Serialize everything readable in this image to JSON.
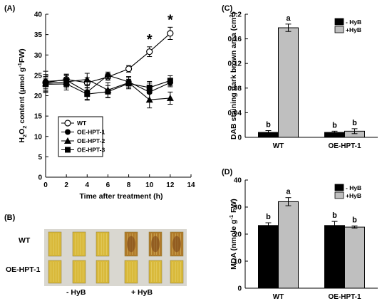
{
  "panels": {
    "a": "(A)",
    "b": "(B)",
    "c": "(C)",
    "d": "(D)"
  },
  "photo": {
    "row_labels": [
      "WT",
      "OE-HPT-1"
    ],
    "group_labels": [
      "- HyB",
      "+ HyB"
    ],
    "colors": {
      "background": "#d9d7d0",
      "leaf_control": "#d9b93a",
      "leaf_treated": "#b07a2a",
      "stain": "#7a4418"
    }
  },
  "chart_data": [
    {
      "id": "h2o2",
      "type": "line",
      "xlabel": "Time after treatment (h)",
      "ylabel_parts": [
        "H",
        "2",
        "O",
        "2",
        " content (μmol g",
        "-1",
        "FW)"
      ],
      "xlim": [
        0,
        14
      ],
      "ylim": [
        0,
        40
      ],
      "xticks": [
        "0",
        "2",
        "4",
        "6",
        "8",
        "10",
        "12",
        "14"
      ],
      "yticks": [
        "0",
        "5",
        "10",
        "15",
        "20",
        "25",
        "30",
        "35",
        "40"
      ],
      "x": [
        0,
        2,
        4,
        6,
        8,
        10,
        12
      ],
      "series": [
        {
          "name": "WT",
          "marker": "circle-open",
          "values": [
            23.2,
            24.0,
            23.2,
            24.6,
            26.6,
            30.8,
            35.3
          ],
          "errors": [
            1.5,
            1.2,
            1.2,
            0.8,
            0.8,
            1.2,
            1.5
          ]
        },
        {
          "name": "OE-HPT-1",
          "marker": "circle-filled",
          "values": [
            23.5,
            23.8,
            20.9,
            25.0,
            23.4,
            20.9,
            23.2
          ],
          "errors": [
            2.5,
            1.5,
            1.8,
            0.8,
            1.0,
            2.2,
            1.0
          ]
        },
        {
          "name": "OE-HPT-2",
          "marker": "triangle-filled",
          "values": [
            23.0,
            23.4,
            24.0,
            21.4,
            23.2,
            19.0,
            19.4
          ],
          "errors": [
            2.2,
            1.5,
            1.5,
            1.8,
            1.5,
            2.0,
            1.5
          ]
        },
        {
          "name": "OE-HPT-3",
          "marker": "square-filled",
          "values": [
            22.8,
            22.9,
            20.4,
            21.0,
            23.0,
            22.0,
            23.7
          ],
          "errors": [
            1.5,
            1.5,
            1.5,
            1.5,
            1.0,
            1.5,
            1.2
          ]
        }
      ],
      "annotations": [
        {
          "x": 10,
          "text": "*"
        },
        {
          "x": 12,
          "text": "*"
        }
      ]
    },
    {
      "id": "dab",
      "type": "bar",
      "ylabel_parts": [
        "DAB staining dark brown area (cm",
        "2",
        ")"
      ],
      "ylim": [
        0,
        0.2
      ],
      "yticks": [
        "0",
        "0.04",
        "0.08",
        "0.12",
        "0.16",
        "0.2"
      ],
      "categories": [
        "WT",
        "OE-HPT-1"
      ],
      "legend": [
        "- HyB",
        "+HyB"
      ],
      "series": [
        {
          "name": "- HyB",
          "color": "#000000",
          "values": [
            0.008,
            0.008
          ],
          "errors": [
            0.003,
            0.002
          ],
          "letters": [
            "b",
            "b"
          ]
        },
        {
          "name": "+HyB",
          "color": "#bfbfbf",
          "values": [
            0.178,
            0.01
          ],
          "errors": [
            0.006,
            0.004
          ],
          "letters": [
            "a",
            "b"
          ]
        }
      ]
    },
    {
      "id": "mda",
      "type": "bar",
      "ylabel_parts": [
        "MDA (nmole g",
        "-1",
        " FW)"
      ],
      "ylim": [
        0,
        40
      ],
      "yticks": [
        "0",
        "10",
        "20",
        "30",
        "40"
      ],
      "categories": [
        "WT",
        "OE-HPT-1"
      ],
      "legend": [
        "- HyB",
        "+HyB"
      ],
      "series": [
        {
          "name": "- HyB",
          "color": "#000000",
          "values": [
            23.2,
            23.2
          ],
          "errors": [
            1.0,
            1.5
          ],
          "letters": [
            "b",
            "b"
          ]
        },
        {
          "name": "+HyB",
          "color": "#bfbfbf",
          "values": [
            32.0,
            22.6
          ],
          "errors": [
            1.5,
            0.4
          ],
          "letters": [
            "a",
            "b"
          ]
        }
      ]
    }
  ]
}
